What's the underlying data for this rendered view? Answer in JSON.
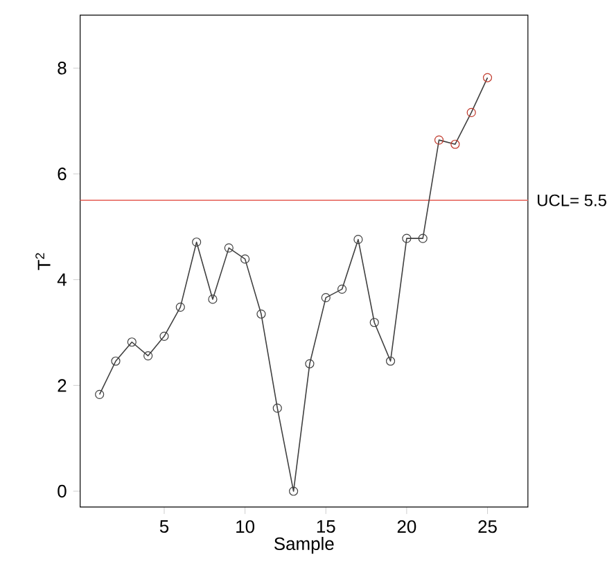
{
  "chart_data": {
    "type": "line",
    "xlabel": "Sample",
    "ylabel": "T$^{2}$",
    "x": [
      1,
      2,
      3,
      4,
      5,
      6,
      7,
      8,
      9,
      10,
      11,
      12,
      13,
      14,
      15,
      16,
      17,
      18,
      19,
      20,
      21,
      22,
      23,
      24,
      25
    ],
    "series": [
      {
        "color": "#404040",
        "values": [
          1.83,
          2.46,
          2.82,
          2.56,
          2.93,
          3.48,
          4.71,
          3.63,
          4.6,
          4.39,
          3.35,
          1.57,
          0,
          2.41,
          3.66,
          3.82,
          4.76,
          3.19,
          2.46,
          4.78,
          4.78,
          6.64,
          6.56,
          7.16,
          7.82
        ],
        "colors": [
          "#404040",
          "#404040",
          "#404040",
          "#404040",
          "#404040",
          "#404040",
          "#404040",
          "#404040",
          "#404040",
          "#404040",
          "#404040",
          "#404040",
          "#404040",
          "#404040",
          "#404040",
          "#404040",
          "#404040",
          "#404040",
          "#404040",
          "#404040",
          "#404040",
          "#c0392b",
          "#c0392b",
          "#c0392b",
          "#c0392b"
        ]
      }
    ],
    "xlim": [
      -0.2,
      27.5
    ],
    "ylim": [
      -0.3,
      9
    ],
    "xticks": [
      5,
      10,
      15,
      20,
      25
    ],
    "yticks": [
      0,
      2,
      4,
      6,
      8
    ],
    "ref_lines": [
      {
        "axis": "y",
        "value": 5.5,
        "label": "UCL= 5.5",
        "color": "#e8736b"
      }
    ],
    "marker": "circle",
    "line_style": "solid"
  }
}
